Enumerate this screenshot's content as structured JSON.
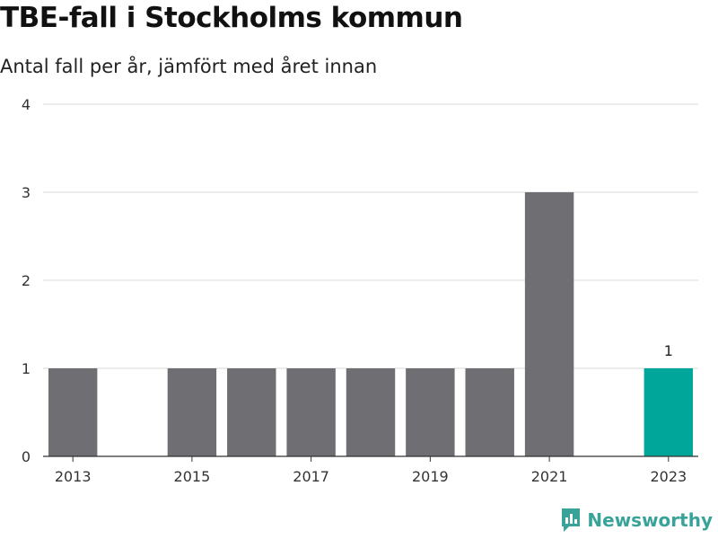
{
  "header": {
    "title": "TBE-fall i Stockholms kommun",
    "subtitle": "Antal fall per år, jämfört med året innan"
  },
  "brand": {
    "name": "Newsworthy",
    "icon": "newsworthy-logo-icon",
    "color": "#3aa399"
  },
  "colors": {
    "bar_default": "#6e6e73",
    "bar_highlight": "#00a699",
    "grid": "#d9d9d9",
    "axis": "#333333"
  },
  "chart_data": {
    "type": "bar",
    "categories": [
      "2013",
      "2014",
      "2015",
      "2016",
      "2017",
      "2018",
      "2019",
      "2020",
      "2021",
      "2022",
      "2023"
    ],
    "values": [
      1,
      0,
      1,
      1,
      1,
      1,
      1,
      1,
      3,
      0,
      1
    ],
    "x_tick_labels": [
      "2013",
      "2015",
      "2017",
      "2019",
      "2021",
      "2023"
    ],
    "y_ticks": [
      0,
      1,
      2,
      3,
      4
    ],
    "ylim": [
      0,
      4
    ],
    "highlight_category": "2023",
    "data_labels": [
      {
        "category": "2023",
        "text": "1"
      }
    ],
    "title": "TBE-fall i Stockholms kommun",
    "subtitle": "Antal fall per år, jämfört med året innan",
    "xlabel": "",
    "ylabel": "",
    "grid": true,
    "legend": "none"
  }
}
